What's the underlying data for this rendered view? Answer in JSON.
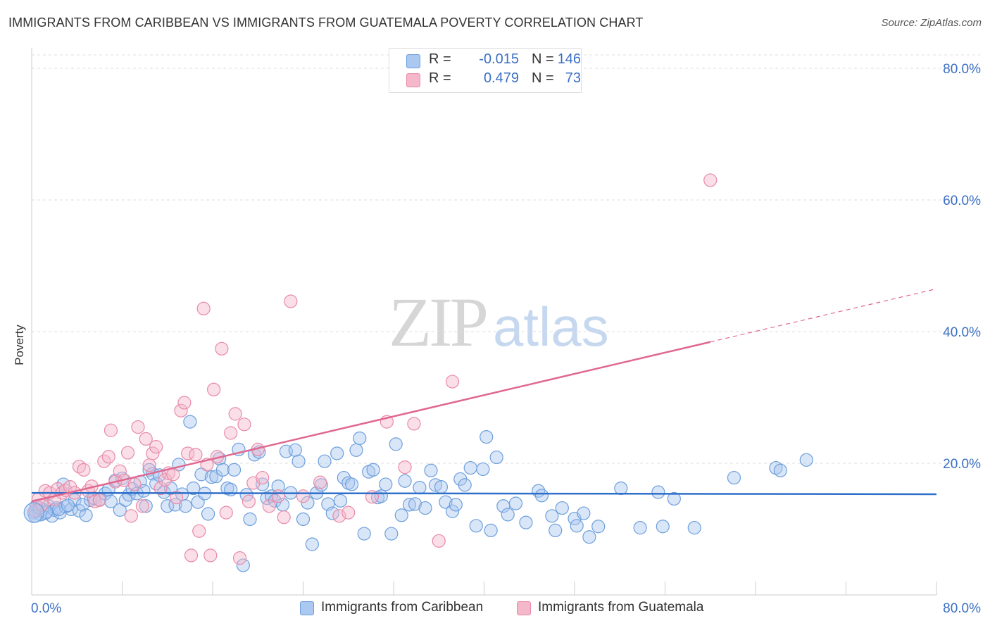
{
  "title": "IMMIGRANTS FROM CARIBBEAN VS IMMIGRANTS FROM GUATEMALA POVERTY CORRELATION CHART",
  "source": "Source: ZipAtlas.com",
  "watermark": {
    "zip": "ZIP",
    "atlas": "atlas"
  },
  "colors": {
    "blue_fill": "#aac8f0",
    "blue_stroke": "#6d9fdc",
    "blue_line": "#2f6fc9",
    "pink_fill": "#f5b8cb",
    "pink_stroke": "#e98aa8",
    "pink_line": "#e0688f",
    "value_text": "#3b6fc4",
    "grid": "#dddddd"
  },
  "stats": [
    {
      "swatch": "blue",
      "r_label": "R =",
      "r_value": "-0.015",
      "n_label": "N =",
      "n_value": "146"
    },
    {
      "swatch": "pink",
      "r_label": "R =",
      "r_value": "0.479",
      "n_label": "N =",
      "n_value": "73"
    }
  ],
  "legend": [
    {
      "swatch": "blue",
      "label": "Immigrants from Caribbean"
    },
    {
      "swatch": "pink",
      "label": "Immigrants from Guatemala"
    }
  ],
  "chart_data": {
    "type": "scatter",
    "title": "IMMIGRANTS FROM CARIBBEAN VS IMMIGRANTS FROM GUATEMALA POVERTY CORRELATION CHART",
    "xlabel": "",
    "ylabel": "Poverty",
    "xlim": [
      0,
      80
    ],
    "ylim": [
      0,
      80
    ],
    "x_tick_labels": [
      "0.0%",
      "80.0%"
    ],
    "y_tick_labels": [
      "20.0%",
      "40.0%",
      "60.0%",
      "80.0%"
    ],
    "y_ticks": [
      20,
      40,
      60,
      80
    ],
    "grid": true,
    "legend_position": "bottom",
    "series": [
      {
        "name": "Immigrants from Caribbean",
        "color": "blue",
        "trend": {
          "x": [
            0,
            80
          ],
          "y": [
            15.5,
            15.3
          ],
          "dashed_from": null
        },
        "points": [
          [
            0.2,
            12.5
          ],
          [
            0.4,
            13.5
          ],
          [
            0.6,
            12.8
          ],
          [
            0.8,
            12.2
          ],
          [
            1.0,
            13.0
          ],
          [
            1.2,
            12.4
          ],
          [
            1.5,
            13.5
          ],
          [
            1.8,
            12.0
          ],
          [
            2.0,
            12.9
          ],
          [
            2.2,
            13.2
          ],
          [
            2.5,
            12.5
          ],
          [
            2.8,
            16.8
          ],
          [
            3.0,
            13.4
          ],
          [
            3.5,
            13.0
          ],
          [
            3.8,
            14.4
          ],
          [
            4.2,
            12.8
          ],
          [
            4.5,
            13.7
          ],
          [
            4.8,
            12.1
          ],
          [
            5.2,
            14.4
          ],
          [
            5.5,
            14.7
          ],
          [
            6.0,
            14.5
          ],
          [
            6.5,
            15.4
          ],
          [
            7.0,
            14.2
          ],
          [
            7.4,
            17.4
          ],
          [
            7.8,
            12.9
          ],
          [
            8.0,
            17.7
          ],
          [
            8.3,
            14.4
          ],
          [
            8.6,
            15.2
          ],
          [
            8.9,
            16.1
          ],
          [
            9.3,
            15.4
          ],
          [
            9.6,
            17.2
          ],
          [
            9.9,
            15.8
          ],
          [
            10.1,
            13.5
          ],
          [
            10.4,
            19.0
          ],
          [
            10.7,
            18.4
          ],
          [
            11.0,
            16.9
          ],
          [
            11.3,
            18.2
          ],
          [
            11.7,
            15.6
          ],
          [
            12.0,
            13.5
          ],
          [
            12.3,
            16.2
          ],
          [
            12.7,
            13.7
          ],
          [
            13.0,
            19.8
          ],
          [
            13.3,
            15.3
          ],
          [
            13.6,
            13.5
          ],
          [
            14.0,
            26.3
          ],
          [
            14.3,
            16.2
          ],
          [
            14.7,
            14.1
          ],
          [
            15.0,
            18.3
          ],
          [
            15.3,
            15.4
          ],
          [
            15.6,
            12.3
          ],
          [
            15.9,
            17.9
          ],
          [
            16.3,
            18.0
          ],
          [
            16.6,
            20.7
          ],
          [
            16.9,
            19.0
          ],
          [
            17.3,
            16.2
          ],
          [
            17.6,
            16.0
          ],
          [
            17.9,
            19.0
          ],
          [
            18.3,
            22.1
          ],
          [
            18.7,
            4.5
          ],
          [
            19.0,
            15.2
          ],
          [
            19.3,
            11.5
          ],
          [
            19.7,
            21.3
          ],
          [
            20.1,
            21.7
          ],
          [
            20.4,
            16.8
          ],
          [
            20.8,
            14.7
          ],
          [
            21.2,
            15.0
          ],
          [
            21.5,
            14.3
          ],
          [
            21.8,
            16.5
          ],
          [
            22.2,
            13.7
          ],
          [
            22.5,
            21.8
          ],
          [
            22.9,
            15.5
          ],
          [
            23.3,
            22.0
          ],
          [
            23.6,
            20.3
          ],
          [
            24.0,
            11.5
          ],
          [
            24.4,
            14.0
          ],
          [
            24.8,
            7.7
          ],
          [
            25.2,
            15.5
          ],
          [
            25.6,
            16.7
          ],
          [
            25.9,
            20.3
          ],
          [
            26.2,
            13.8
          ],
          [
            26.6,
            12.4
          ],
          [
            27.0,
            21.5
          ],
          [
            27.3,
            14.3
          ],
          [
            27.6,
            17.8
          ],
          [
            28.0,
            17.0
          ],
          [
            28.3,
            16.8
          ],
          [
            28.7,
            22.0
          ],
          [
            29.0,
            23.8
          ],
          [
            29.4,
            9.3
          ],
          [
            29.8,
            18.7
          ],
          [
            30.2,
            19.0
          ],
          [
            30.6,
            14.8
          ],
          [
            30.9,
            15.0
          ],
          [
            31.3,
            16.8
          ],
          [
            31.8,
            9.3
          ],
          [
            32.2,
            22.9
          ],
          [
            32.7,
            12.1
          ],
          [
            33.0,
            17.3
          ],
          [
            33.4,
            13.7
          ],
          [
            33.9,
            13.8
          ],
          [
            34.3,
            16.3
          ],
          [
            34.8,
            13.2
          ],
          [
            35.3,
            18.9
          ],
          [
            35.7,
            16.7
          ],
          [
            36.2,
            16.4
          ],
          [
            36.6,
            14.1
          ],
          [
            37.2,
            12.7
          ],
          [
            37.5,
            13.7
          ],
          [
            37.9,
            17.6
          ],
          [
            38.3,
            16.7
          ],
          [
            38.8,
            19.3
          ],
          [
            39.3,
            10.5
          ],
          [
            39.9,
            19.1
          ],
          [
            40.2,
            24.0
          ],
          [
            40.6,
            9.8
          ],
          [
            41.1,
            20.9
          ],
          [
            41.7,
            13.5
          ],
          [
            42.1,
            12.2
          ],
          [
            42.8,
            13.9
          ],
          [
            43.7,
            11.0
          ],
          [
            44.8,
            15.8
          ],
          [
            45.1,
            15.1
          ],
          [
            46.0,
            12.0
          ],
          [
            46.3,
            9.8
          ],
          [
            46.9,
            13.2
          ],
          [
            48.0,
            11.6
          ],
          [
            48.2,
            10.5
          ],
          [
            48.8,
            12.4
          ],
          [
            49.3,
            8.8
          ],
          [
            50.1,
            10.4
          ],
          [
            52.1,
            16.2
          ],
          [
            53.8,
            10.2
          ],
          [
            55.4,
            15.6
          ],
          [
            55.8,
            10.4
          ],
          [
            56.8,
            14.6
          ],
          [
            58.6,
            10.2
          ],
          [
            62.1,
            17.8
          ],
          [
            65.8,
            19.3
          ],
          [
            66.2,
            18.9
          ],
          [
            68.5,
            20.5
          ],
          [
            0.3,
            12.0
          ],
          [
            0.7,
            13.2
          ],
          [
            1.3,
            12.6
          ],
          [
            2.4,
            13.0
          ],
          [
            3.2,
            13.6
          ],
          [
            6.8,
            16.0
          ]
        ]
      },
      {
        "name": "Immigrants from Guatemala",
        "color": "pink",
        "trend": {
          "x": [
            0,
            80
          ],
          "y": [
            14.2,
            46.5
          ],
          "dashed_from": 60.0
        },
        "points": [
          [
            0.3,
            12.8
          ],
          [
            0.6,
            14.6
          ],
          [
            0.9,
            13.7
          ],
          [
            1.2,
            15.8
          ],
          [
            1.6,
            15.5
          ],
          [
            2.0,
            14.5
          ],
          [
            2.3,
            16.1
          ],
          [
            2.7,
            15.5
          ],
          [
            3.0,
            15.9
          ],
          [
            3.4,
            16.4
          ],
          [
            3.8,
            15.5
          ],
          [
            4.2,
            19.5
          ],
          [
            4.6,
            19.0
          ],
          [
            5.0,
            15.8
          ],
          [
            5.3,
            16.5
          ],
          [
            5.6,
            14.2
          ],
          [
            6.0,
            14.4
          ],
          [
            6.4,
            20.3
          ],
          [
            6.8,
            21.0
          ],
          [
            7.0,
            25.0
          ],
          [
            7.4,
            17.2
          ],
          [
            7.8,
            18.8
          ],
          [
            8.2,
            17.4
          ],
          [
            8.5,
            21.6
          ],
          [
            8.8,
            12.0
          ],
          [
            9.1,
            16.8
          ],
          [
            9.4,
            25.5
          ],
          [
            9.8,
            13.5
          ],
          [
            10.1,
            23.7
          ],
          [
            10.4,
            19.7
          ],
          [
            10.7,
            21.5
          ],
          [
            11.0,
            22.5
          ],
          [
            11.4,
            16.2
          ],
          [
            11.8,
            17.5
          ],
          [
            12.1,
            18.5
          ],
          [
            12.5,
            18.3
          ],
          [
            12.8,
            14.8
          ],
          [
            13.2,
            28.0
          ],
          [
            13.5,
            29.2
          ],
          [
            13.8,
            21.5
          ],
          [
            14.1,
            6.0
          ],
          [
            14.5,
            21.3
          ],
          [
            14.8,
            9.7
          ],
          [
            15.2,
            43.5
          ],
          [
            15.5,
            19.8
          ],
          [
            15.8,
            6.0
          ],
          [
            16.1,
            31.2
          ],
          [
            16.4,
            21.0
          ],
          [
            16.8,
            37.4
          ],
          [
            17.2,
            12.5
          ],
          [
            17.6,
            24.6
          ],
          [
            18.0,
            27.5
          ],
          [
            18.4,
            5.6
          ],
          [
            18.8,
            25.9
          ],
          [
            19.2,
            14.2
          ],
          [
            19.6,
            17.0
          ],
          [
            20.0,
            22.1
          ],
          [
            20.4,
            17.8
          ],
          [
            21.0,
            13.5
          ],
          [
            21.8,
            15.0
          ],
          [
            22.3,
            11.8
          ],
          [
            22.9,
            44.6
          ],
          [
            24.0,
            15.0
          ],
          [
            25.5,
            17.1
          ],
          [
            27.2,
            12.0
          ],
          [
            28.0,
            12.5
          ],
          [
            30.1,
            14.9
          ],
          [
            31.4,
            26.3
          ],
          [
            33.0,
            19.4
          ],
          [
            33.8,
            26.0
          ],
          [
            36.0,
            8.2
          ],
          [
            37.2,
            32.4
          ],
          [
            60.0,
            63.0
          ]
        ]
      }
    ]
  }
}
